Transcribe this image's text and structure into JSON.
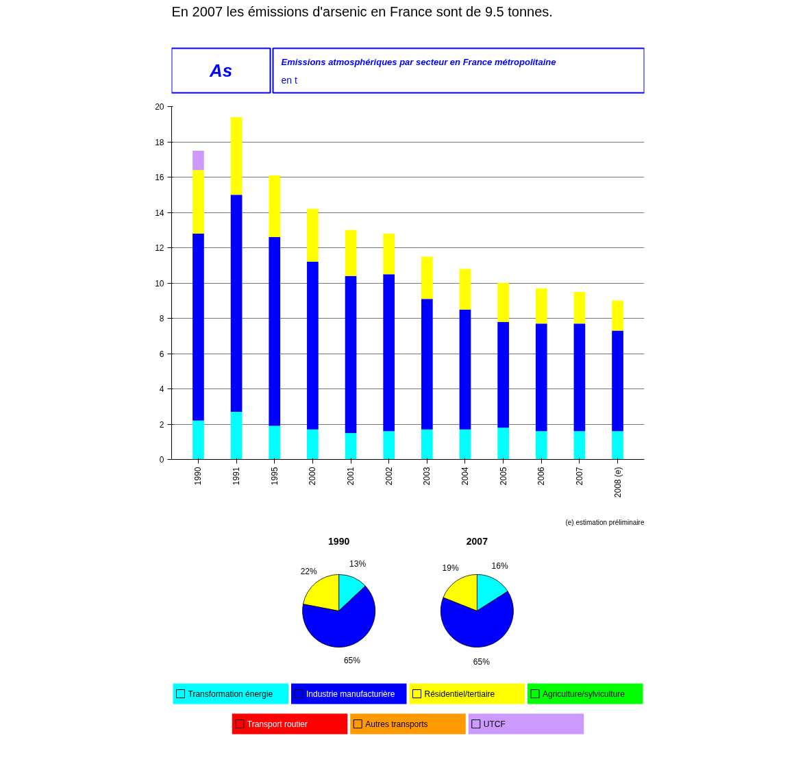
{
  "chart_data": [
    {
      "type": "bar",
      "stacked": true,
      "title": "As",
      "subtitle": "Emissions atmosphériques par secteur en France métropolitaine",
      "ylabel": "en t",
      "annotations": [
        "En 2007 les émissions d'arsenic en France sont de 9.5 tonnes.",
        "(e) estimation préliminaire"
      ],
      "categories": [
        "1990",
        "1991",
        "1995",
        "2000",
        "2001",
        "2002",
        "2003",
        "2004",
        "2005",
        "2006",
        "2007",
        "2008 (e)"
      ],
      "series": [
        {
          "name": "Transformation énergie",
          "color": "#00ffff",
          "values": [
            2.2,
            2.7,
            1.9,
            1.7,
            1.5,
            1.6,
            1.7,
            1.7,
            1.8,
            1.6,
            1.6,
            1.6
          ]
        },
        {
          "name": "Industrie manufacturière",
          "color": "#0000ff",
          "values": [
            10.6,
            12.3,
            10.7,
            9.5,
            8.9,
            8.9,
            7.4,
            6.8,
            6.0,
            6.1,
            6.1,
            5.7
          ]
        },
        {
          "name": "Résidentiel/tertiaire",
          "color": "#ffff00",
          "values": [
            3.6,
            4.4,
            3.5,
            3.0,
            2.6,
            2.3,
            2.4,
            2.3,
            2.2,
            2.0,
            1.8,
            1.7
          ]
        },
        {
          "name": "Agriculture/sylviculture",
          "color": "#00ff00",
          "values": [
            0,
            0,
            0,
            0,
            0,
            0,
            0,
            0,
            0,
            0,
            0,
            0
          ]
        },
        {
          "name": "Transport routier",
          "color": "#ff0000",
          "values": [
            0,
            0,
            0,
            0,
            0,
            0,
            0,
            0,
            0,
            0,
            0,
            0
          ]
        },
        {
          "name": "Autres transports",
          "color": "#ff9900",
          "values": [
            0,
            0,
            0,
            0,
            0,
            0,
            0,
            0,
            0,
            0,
            0,
            0
          ]
        },
        {
          "name": "UTCF",
          "color": "#cc99ff",
          "values": [
            1.1,
            0,
            0,
            0,
            0,
            0,
            0,
            0,
            0,
            0,
            0,
            0
          ]
        }
      ],
      "ylim": [
        0,
        20
      ],
      "yticks": [
        0,
        2,
        4,
        6,
        8,
        10,
        12,
        14,
        16,
        18,
        20
      ],
      "grid": "y",
      "legend": "bottom"
    },
    {
      "type": "pie",
      "title": "1990",
      "categories": [
        null,
        null,
        null
      ],
      "values": [
        13,
        65,
        22
      ],
      "colors": [
        "#00ffff",
        "#0000ff",
        "#ffff00"
      ],
      "value_labels": [
        "13%",
        "65%",
        "22%"
      ]
    },
    {
      "type": "pie",
      "title": "2007",
      "categories": [
        null,
        null,
        null
      ],
      "values": [
        16,
        65,
        19
      ],
      "colors": [
        "#00ffff",
        "#0000ff",
        "#ffff00"
      ],
      "value_labels": [
        "16%",
        "65%",
        "19%"
      ]
    }
  ]
}
